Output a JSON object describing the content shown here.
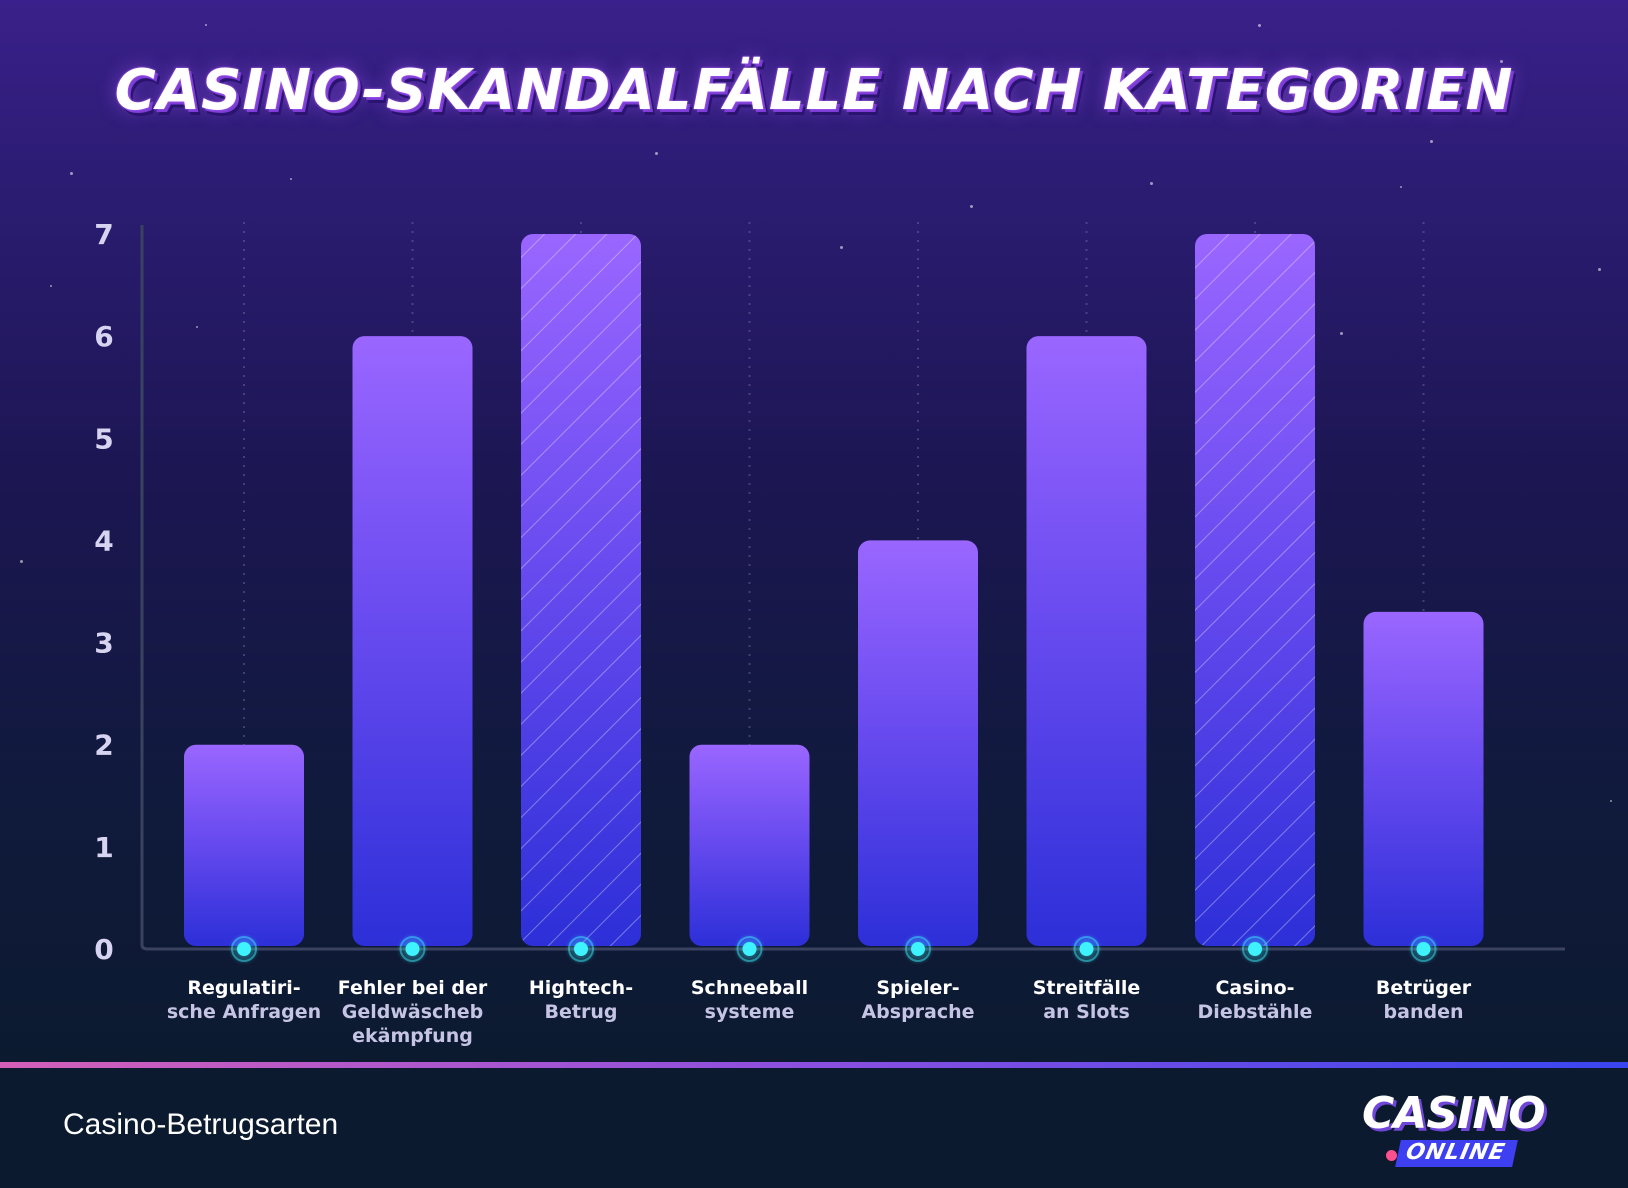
{
  "title": "CASINO-SKANDALFÄLLE NACH KATEGORIEN",
  "footer": {
    "label": "Casino-Betrugsarten",
    "logo_main": "CASINO",
    "logo_sub": "ONLINE"
  },
  "colors": {
    "bar_top": "#9a66ff",
    "bar_bottom": "#2d2fd8",
    "dot": "#3ef3ff",
    "axis": "#3a4260"
  },
  "chart_data": {
    "type": "bar",
    "title": "CASINO-SKANDALFÄLLE NACH KATEGORIEN",
    "categories": [
      [
        "Regulatiri-",
        "sche Anfragen"
      ],
      [
        "Fehler bei der",
        "Geldwäscheb",
        "ekämpfung"
      ],
      [
        "Hightech-",
        "Betrug"
      ],
      [
        "Schneeball",
        "systeme"
      ],
      [
        "Spieler-",
        "Absprache"
      ],
      [
        "Streitfälle",
        "an Slots"
      ],
      [
        "Casino-",
        "Diebstähle"
      ],
      [
        "Betrüger",
        "banden"
      ]
    ],
    "values": [
      2,
      6,
      7,
      2,
      4,
      6,
      7,
      3.3
    ],
    "highlighted": [
      false,
      false,
      true,
      false,
      false,
      false,
      true,
      false
    ],
    "yticks": [
      0,
      1,
      2,
      3,
      4,
      5,
      6,
      7
    ],
    "ylim": [
      0,
      7
    ],
    "xlabel": "",
    "ylabel": "",
    "grid": true,
    "legend": "none"
  }
}
